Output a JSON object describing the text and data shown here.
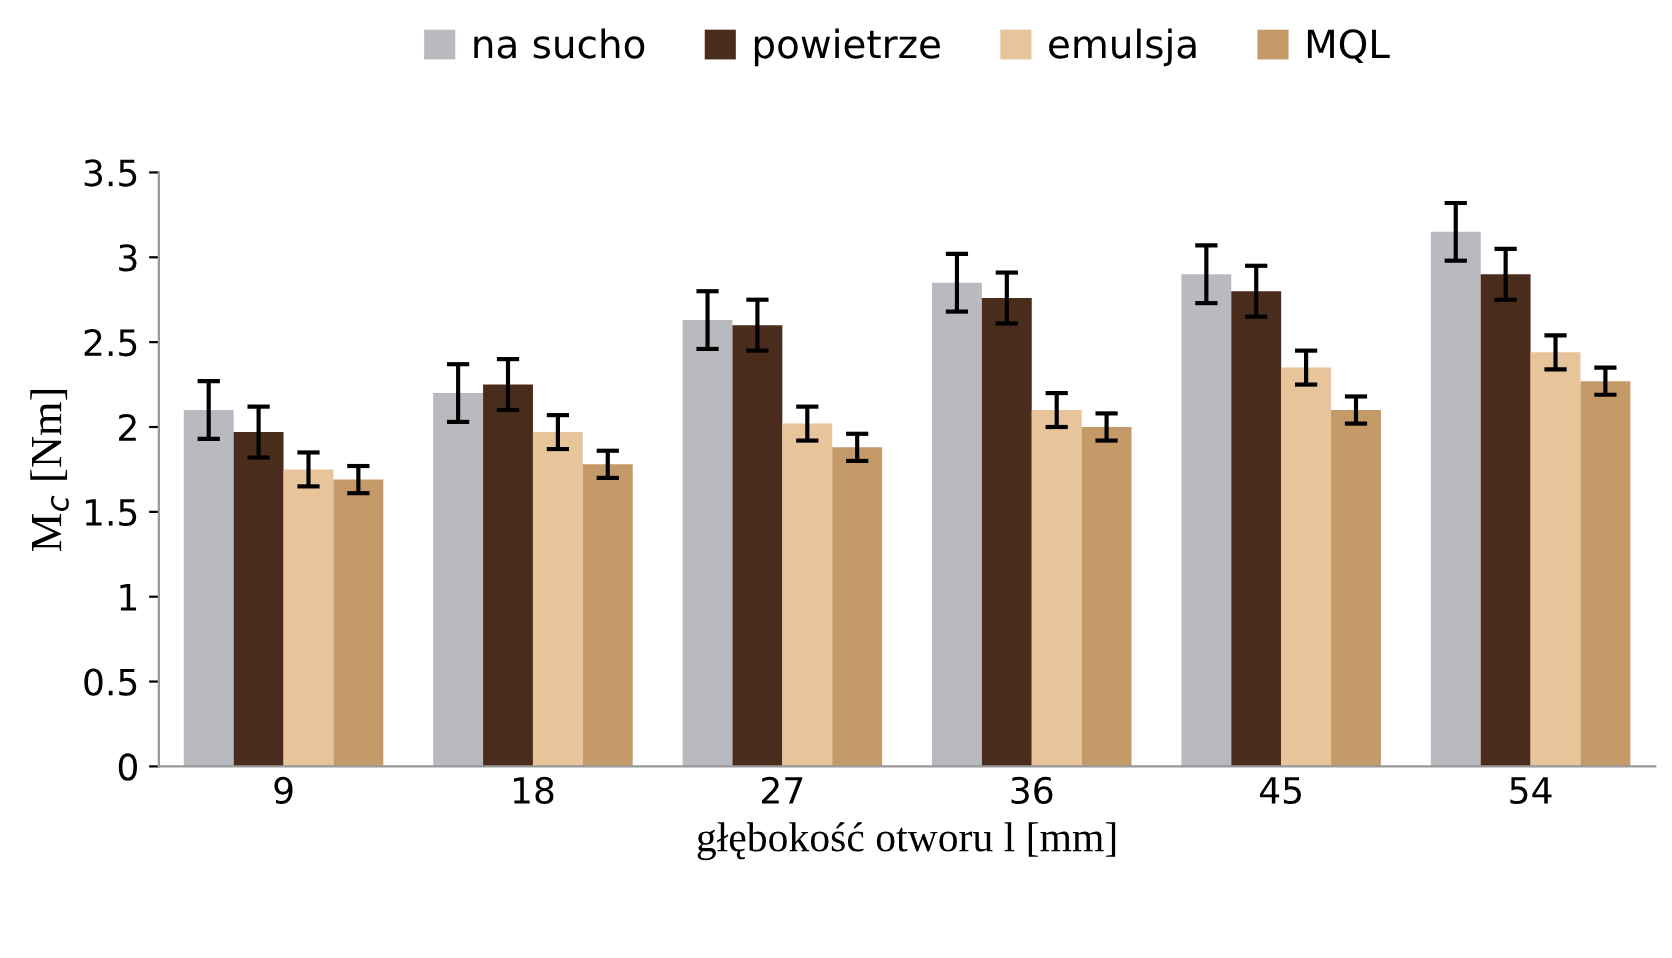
{
  "chart_data": {
    "type": "bar",
    "xlabel": "głębokość otworu l [mm]",
    "ylabel": "M$_{c}$ [Nm]",
    "categories": [
      "9",
      "18",
      "27",
      "36",
      "45",
      "54"
    ],
    "series": [
      {
        "name": "na sucho",
        "color": "#b9babf",
        "values": [
          2.1,
          2.2,
          2.63,
          2.85,
          2.9,
          3.15
        ],
        "errors": [
          0.17,
          0.17,
          0.17,
          0.17,
          0.17,
          0.17
        ]
      },
      {
        "name": "powietrze",
        "color": "#4a2c1c",
        "values": [
          1.97,
          2.25,
          2.6,
          2.76,
          2.8,
          2.9
        ],
        "errors": [
          0.15,
          0.15,
          0.15,
          0.15,
          0.15,
          0.15
        ]
      },
      {
        "name": "emulsja",
        "color": "#e8c49a",
        "values": [
          1.75,
          1.97,
          2.02,
          2.1,
          2.35,
          2.44
        ],
        "errors": [
          0.1,
          0.1,
          0.1,
          0.1,
          0.1,
          0.1
        ]
      },
      {
        "name": "MQL",
        "color": "#c49a68",
        "values": [
          1.69,
          1.78,
          1.88,
          2.0,
          2.1,
          2.27
        ],
        "errors": [
          0.08,
          0.08,
          0.08,
          0.08,
          0.08,
          0.08
        ]
      }
    ],
    "ylim": [
      0,
      3.5
    ],
    "yticks": [
      0,
      0.5,
      1,
      1.5,
      2,
      2.5,
      3,
      3.5
    ],
    "grid": false,
    "legend": "top"
  }
}
